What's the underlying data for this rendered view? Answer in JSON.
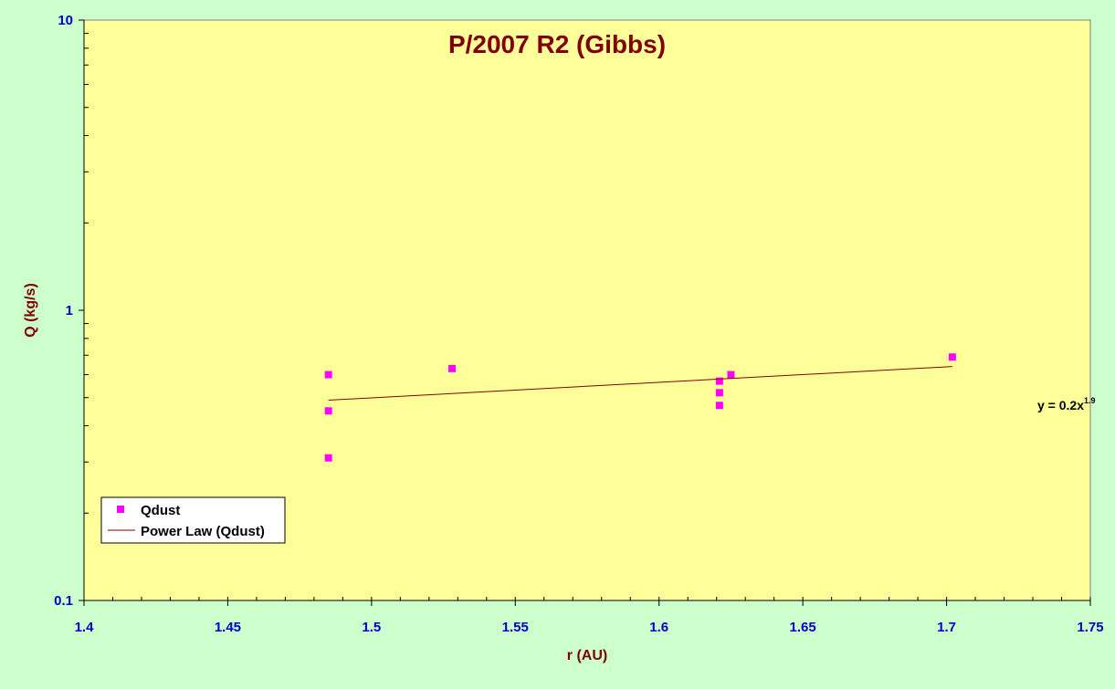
{
  "chart_data": {
    "type": "scatter",
    "title": "P/2007 R2 (Gibbs)",
    "xlabel": "r (AU)",
    "ylabel": "Q (kg/s)",
    "xlim": [
      1.4,
      1.75
    ],
    "ylim": [
      0.1,
      10
    ],
    "y_scale": "log",
    "x_ticks": [
      "1.4",
      "1.45",
      "1.5",
      "1.55",
      "1.6",
      "1.65",
      "1.7",
      "1.75"
    ],
    "x_tick_values": [
      1.4,
      1.45,
      1.5,
      1.55,
      1.6,
      1.65,
      1.7,
      1.75
    ],
    "y_ticks": [
      "0.1",
      "1",
      "10"
    ],
    "y_tick_values": [
      0.1,
      1,
      10
    ],
    "grid": false,
    "legend_position": "bottom-left",
    "series": [
      {
        "name": "Qdust",
        "kind": "points",
        "color": "#ff00ff",
        "x": [
          1.485,
          1.485,
          1.485,
          1.528,
          1.621,
          1.621,
          1.621,
          1.625,
          1.702
        ],
        "y": [
          0.6,
          0.45,
          0.31,
          0.63,
          0.57,
          0.52,
          0.47,
          0.6,
          0.69
        ]
      },
      {
        "name": "Power Law (Qdust)",
        "kind": "line",
        "color": "#800000",
        "x": [
          1.485,
          1.702
        ],
        "y": [
          0.49,
          0.64
        ]
      }
    ],
    "annotations": [
      {
        "text_main": "y = 0.2x",
        "text_sup": "1.9"
      }
    ],
    "colors": {
      "background": "#ccffcc",
      "plot_area": "#ffff99",
      "title": "#800000",
      "axis_label": "#800000",
      "tick_label": "#0000cc"
    }
  }
}
